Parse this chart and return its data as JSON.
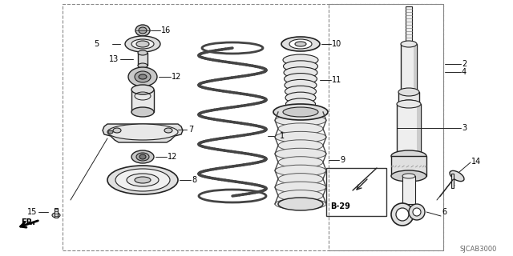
{
  "bg_color": "#ffffff",
  "border_color": "#888888",
  "line_color": "#222222",
  "diagram_code": "SJCAB3000",
  "figsize": [
    6.4,
    3.2
  ],
  "dpi": 100
}
